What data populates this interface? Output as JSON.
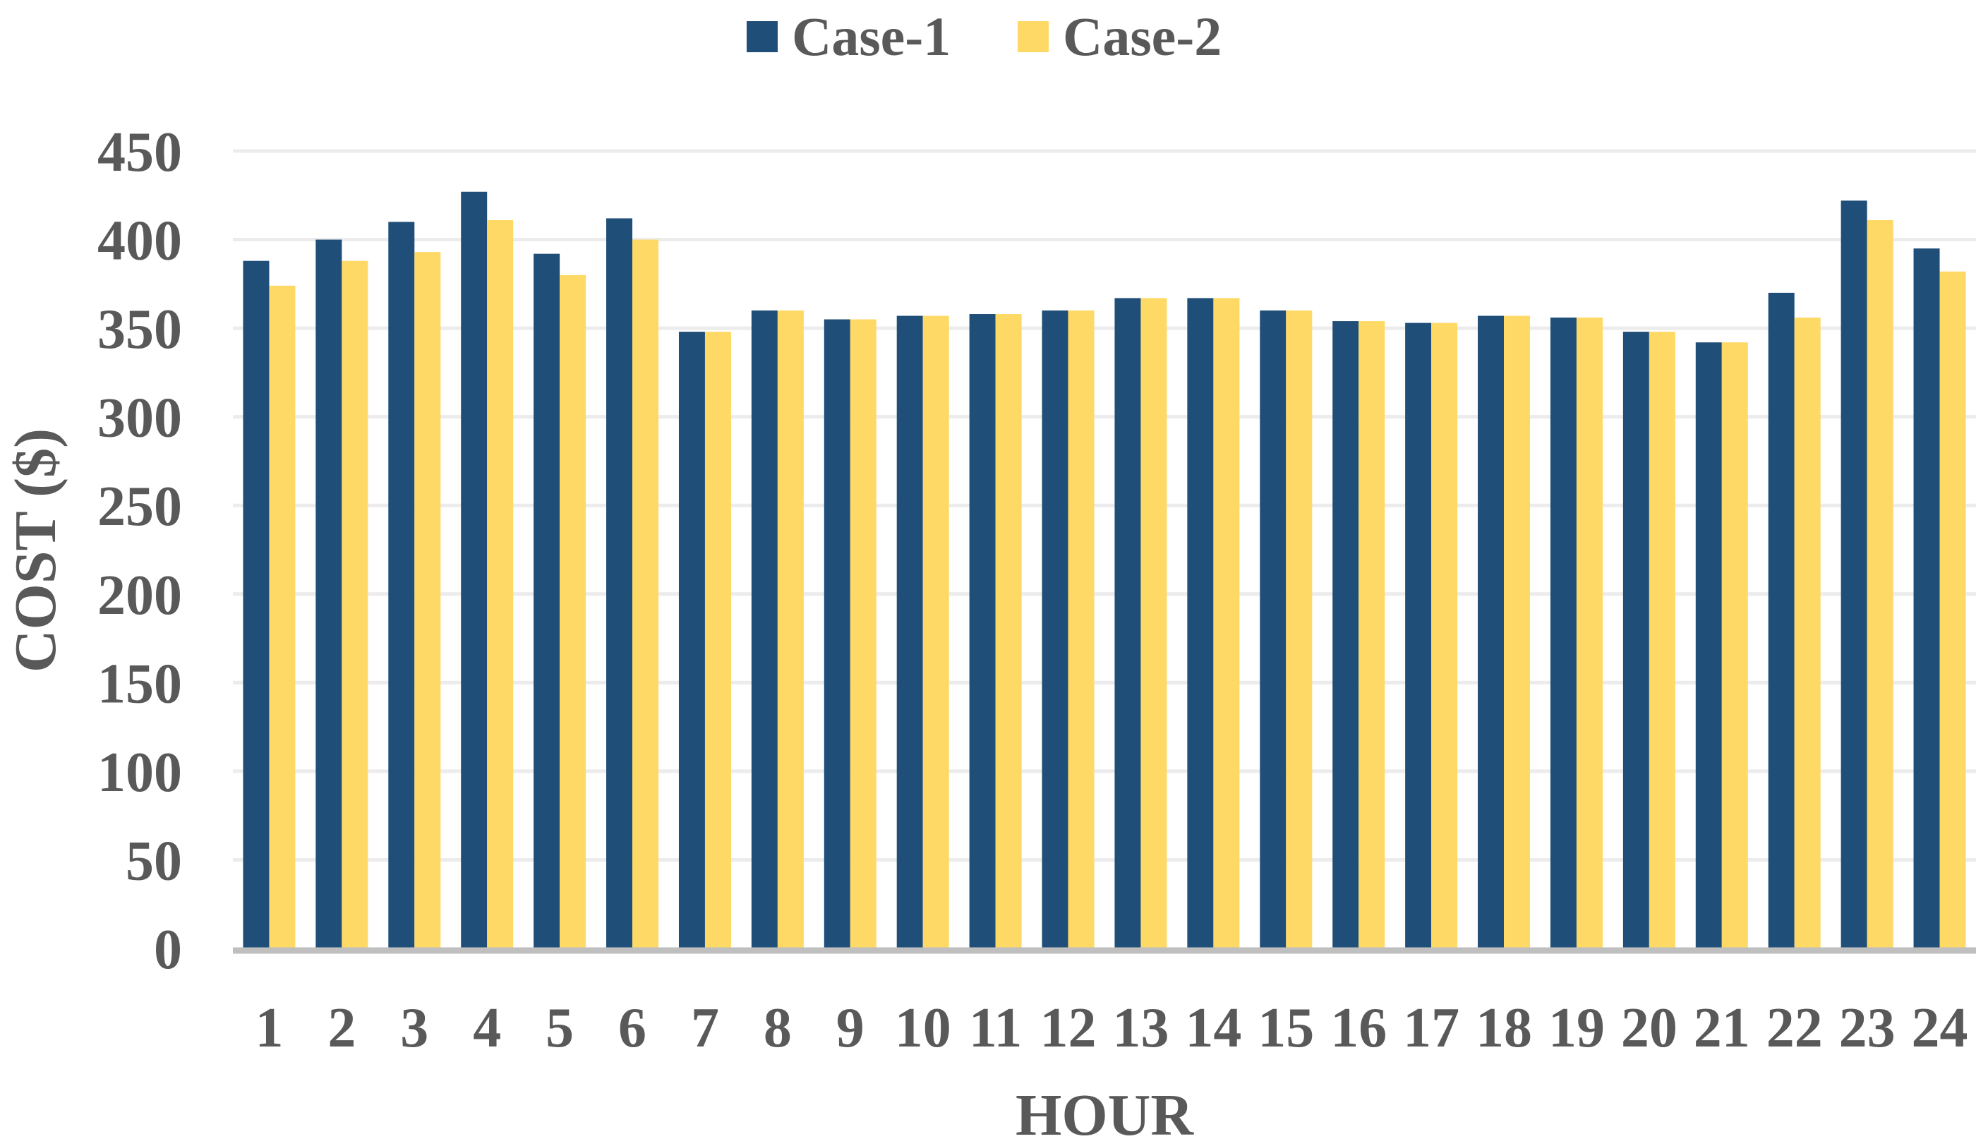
{
  "chart_data": {
    "type": "bar",
    "title": "",
    "xlabel": "HOUR",
    "ylabel": "COST ($)",
    "ylim": [
      0,
      450
    ],
    "yticks": [
      0,
      50,
      100,
      150,
      200,
      250,
      300,
      350,
      400,
      450
    ],
    "grid": true,
    "legend_position": "top-center",
    "categories": [
      "1",
      "2",
      "3",
      "4",
      "5",
      "6",
      "7",
      "8",
      "9",
      "10",
      "11",
      "12",
      "13",
      "14",
      "15",
      "16",
      "17",
      "18",
      "19",
      "20",
      "21",
      "22",
      "23",
      "24"
    ],
    "series": [
      {
        "name": "Case-1",
        "color": "#1f4e79",
        "values": [
          388,
          400,
          410,
          427,
          392,
          412,
          348,
          360,
          355,
          357,
          358,
          360,
          367,
          367,
          360,
          354,
          353,
          357,
          356,
          348,
          342,
          370,
          422,
          395
        ]
      },
      {
        "name": "Case-2",
        "color": "#ffd966",
        "values": [
          374,
          388,
          393,
          411,
          380,
          400,
          348,
          360,
          355,
          357,
          358,
          360,
          367,
          367,
          360,
          354,
          353,
          357,
          356,
          348,
          342,
          356,
          411,
          382
        ]
      }
    ],
    "colors": {
      "gridline": "#ececec",
      "baseline": "#bfbfbf",
      "text": "#595959"
    }
  }
}
